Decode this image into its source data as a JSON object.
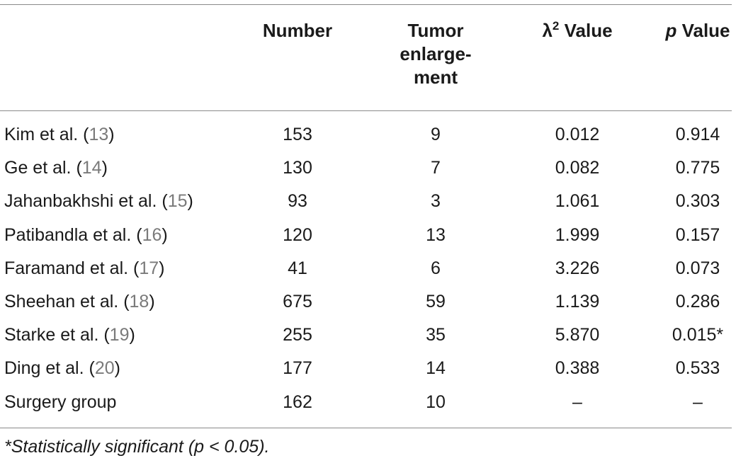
{
  "table": {
    "headers": {
      "number": "Number",
      "tumor": "Tumor\nenlarge-\nment",
      "lambda_symbol": "λ",
      "lambda_sup": "2",
      "lambda_rest": " Value",
      "p_italic": "p",
      "p_rest": " Value"
    },
    "rows": [
      {
        "study": "Kim et al. (",
        "ref": "13",
        "close": ")",
        "number": "153",
        "tumor": "9",
        "lambda": "0.012",
        "p": "0.914"
      },
      {
        "study": "Ge et al. (",
        "ref": "14",
        "close": ")",
        "number": "130",
        "tumor": "7",
        "lambda": "0.082",
        "p": "0.775"
      },
      {
        "study": "Jahanbakhshi et al. (",
        "ref": "15",
        "close": ")",
        "number": "93",
        "tumor": "3",
        "lambda": "1.061",
        "p": "0.303"
      },
      {
        "study": "Patibandla et al. (",
        "ref": "16",
        "close": ")",
        "number": "120",
        "tumor": "13",
        "lambda": "1.999",
        "p": "0.157"
      },
      {
        "study": "Faramand et al. (",
        "ref": "17",
        "close": ")",
        "number": "41",
        "tumor": "6",
        "lambda": "3.226",
        "p": "0.073"
      },
      {
        "study": "Sheehan et al. (",
        "ref": "18",
        "close": ")",
        "number": "675",
        "tumor": "59",
        "lambda": "1.139",
        "p": "0.286"
      },
      {
        "study": "Starke et al. (",
        "ref": "19",
        "close": ")",
        "number": "255",
        "tumor": "35",
        "lambda": "5.870",
        "p": "0.015*"
      },
      {
        "study": "Ding et al. (",
        "ref": "20",
        "close": ")",
        "number": "177",
        "tumor": "14",
        "lambda": "0.388",
        "p": "0.533"
      },
      {
        "study": "Surgery group",
        "ref": "",
        "close": "",
        "number": "162",
        "tumor": "10",
        "lambda": "–",
        "p": "–"
      }
    ],
    "footnote": "*Statistically significant (p < 0.05)."
  }
}
